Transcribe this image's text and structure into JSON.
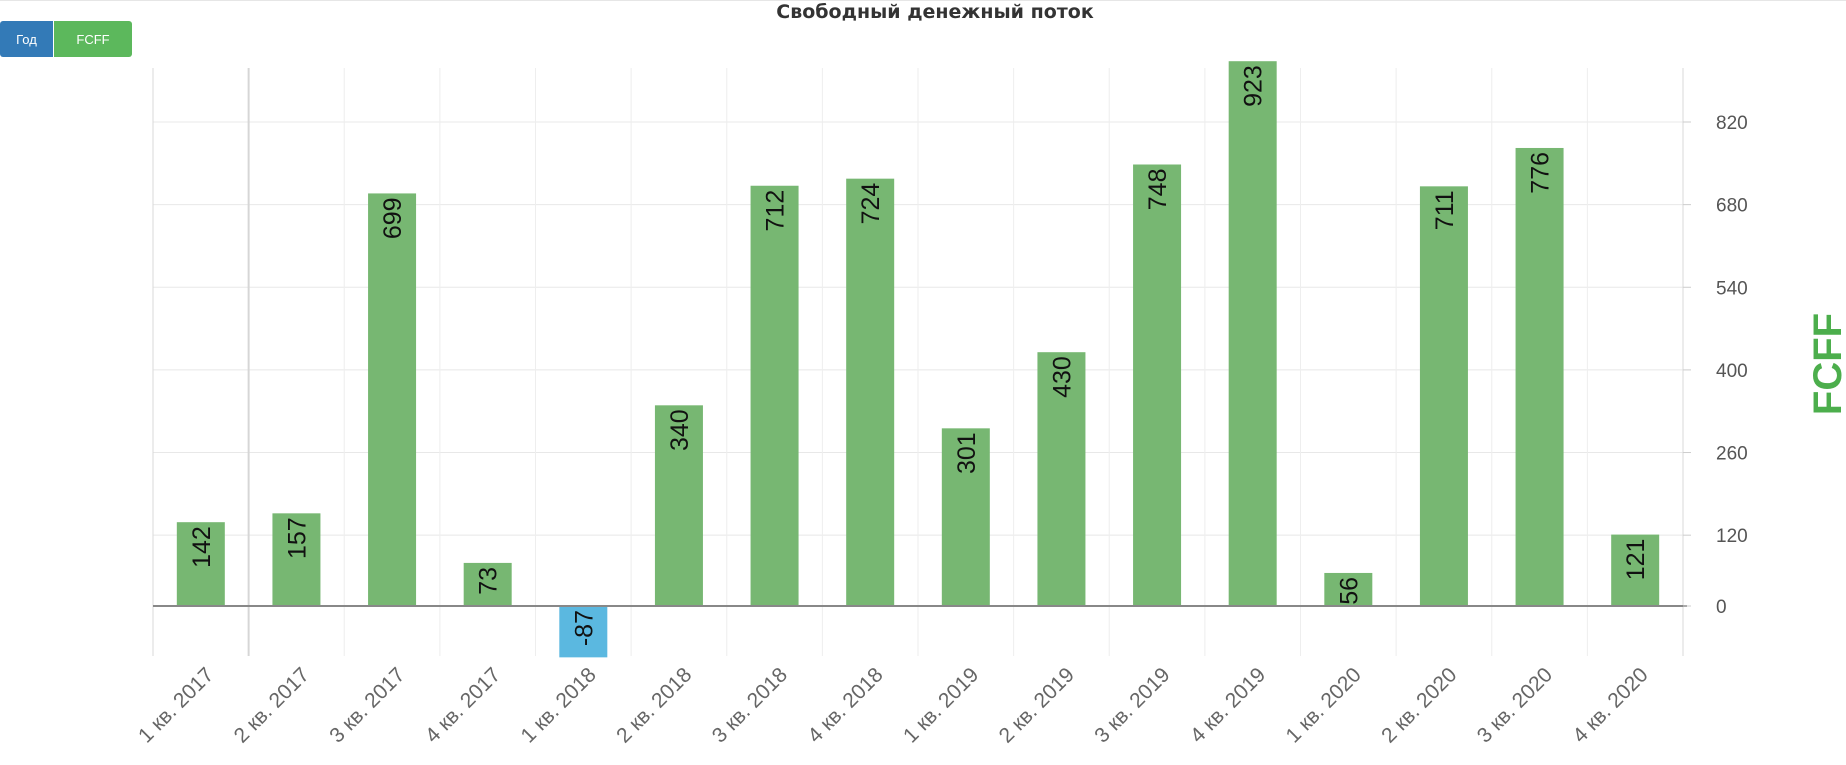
{
  "toolbar": {
    "period_label": "Год",
    "metric_label": "FCFF"
  },
  "chart_data": {
    "type": "bar",
    "title": "Свободный денежный поток",
    "ylabel": "FCFF",
    "xlabel": "",
    "categories": [
      "1 кв. 2017",
      "2 кв. 2017",
      "3 кв. 2017",
      "4 кв. 2017",
      "1 кв. 2018",
      "2 кв. 2018",
      "3 кв. 2018",
      "4 кв. 2018",
      "1 кв. 2019",
      "2 кв. 2019",
      "3 кв. 2019",
      "4 кв. 2019",
      "1 кв. 2020",
      "2 кв. 2020",
      "3 кв. 2020",
      "4 кв. 2020"
    ],
    "values": [
      142,
      157,
      699,
      73,
      -87,
      340,
      712,
      724,
      301,
      430,
      748,
      923,
      56,
      711,
      776,
      121
    ],
    "y_ticks": [
      0,
      120,
      260,
      400,
      540,
      680,
      820
    ],
    "ylim": [
      -87,
      923
    ],
    "y_axis_position": "right",
    "grid": true,
    "legend": "none",
    "colors": {
      "positive": "#77b772",
      "negative": "#5bb8e0"
    }
  }
}
